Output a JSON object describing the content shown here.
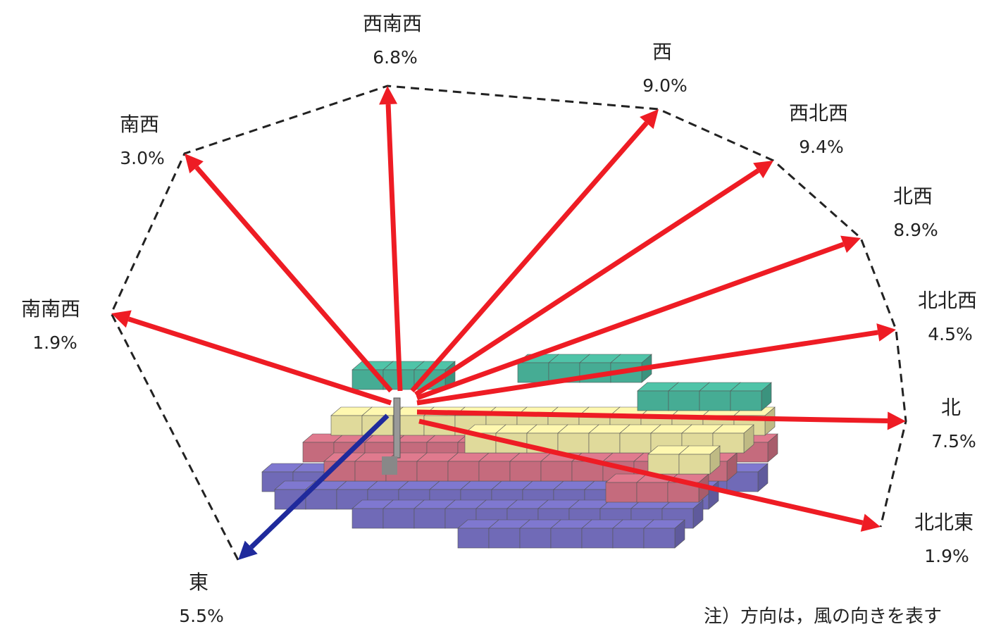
{
  "directions": [
    {
      "label": "南南西",
      "value": "1.9%"
    },
    {
      "label": "南西",
      "value": "3.0%"
    },
    {
      "label": "西南西",
      "value": "6.8%"
    },
    {
      "label": "西",
      "value": "9.0%"
    },
    {
      "label": "西北西",
      "value": "9.4%"
    },
    {
      "label": "北西",
      "value": "8.9%"
    },
    {
      "label": "北北西",
      "value": "4.5%"
    },
    {
      "label": "北",
      "value": "7.5%"
    },
    {
      "label": "北北東",
      "value": "1.9%"
    },
    {
      "label": "東",
      "value": "5.5%"
    }
  ],
  "note": "注）方向は，風の向きを表す"
}
